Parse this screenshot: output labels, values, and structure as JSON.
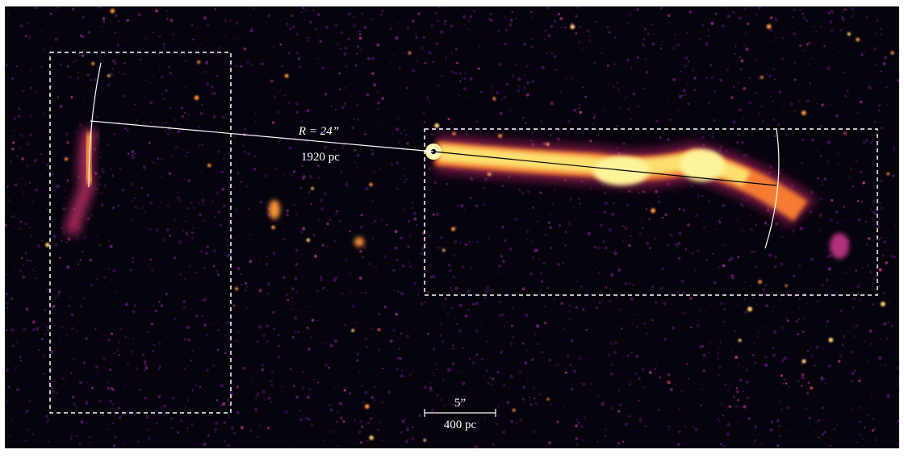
{
  "annotations": {
    "radius": "R = 24”",
    "distance": "1920 pc"
  },
  "scale_bar": {
    "angle": "5”",
    "length": "400 pc"
  }
}
